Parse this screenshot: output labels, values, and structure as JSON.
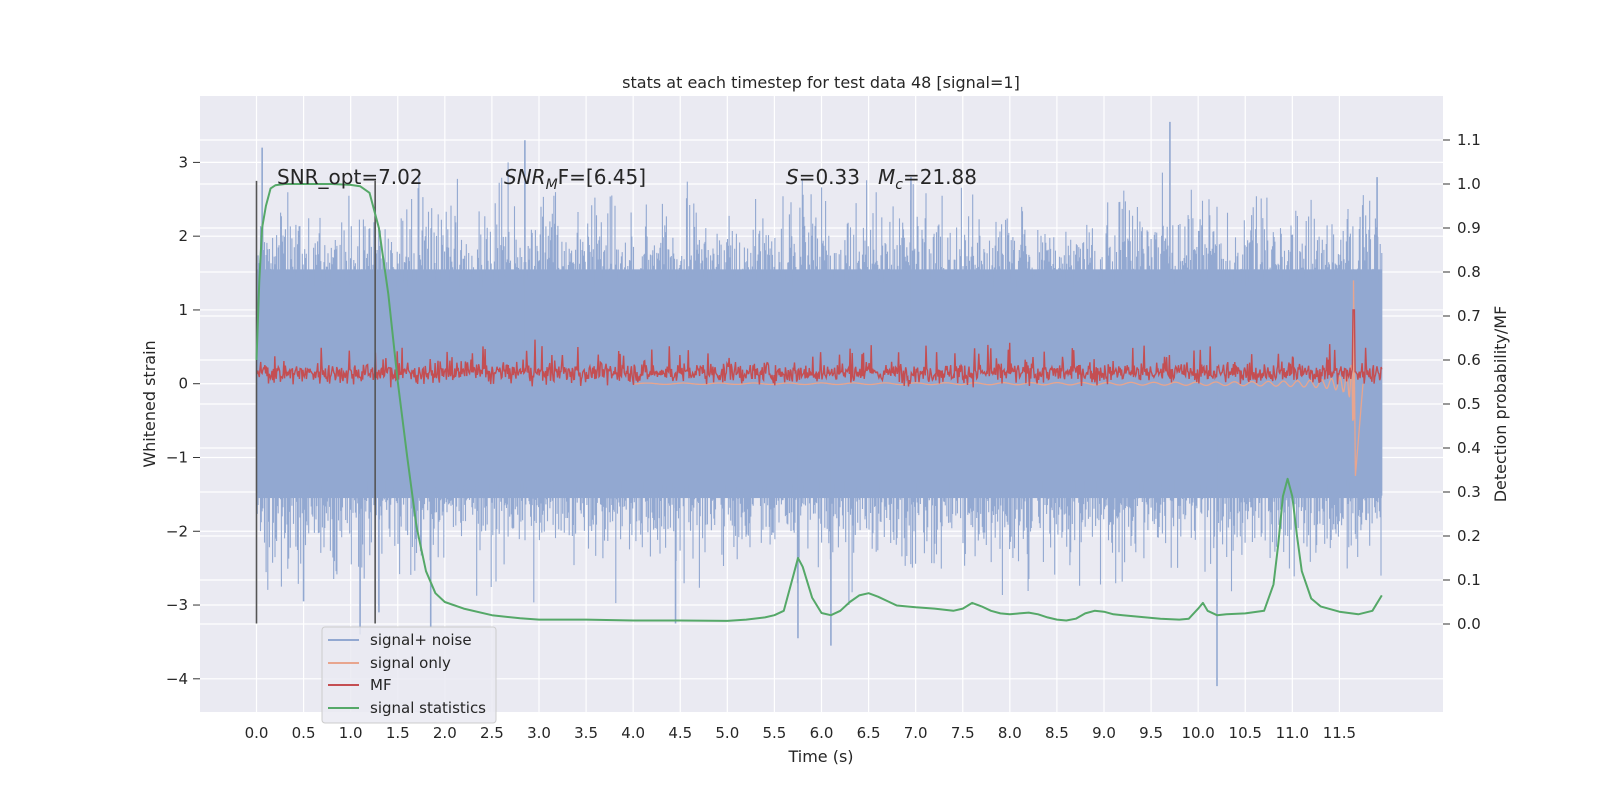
{
  "chart_data": {
    "type": "line",
    "title": "stats at each timestep for test data 48 [signal=1]",
    "xlabel": "Time (s)",
    "ylabel": "Whitened strain",
    "y2label": "Detection probability/MF",
    "xlim": [
      -0.6,
      12.6
    ],
    "ylim": [
      -4.45,
      3.9
    ],
    "y2lim": [
      -0.2,
      1.2
    ],
    "x_ticks": [
      0.0,
      0.5,
      1.0,
      1.5,
      2.0,
      2.5,
      3.0,
      3.5,
      4.0,
      4.5,
      5.0,
      5.5,
      6.0,
      6.5,
      7.0,
      7.5,
      8.0,
      8.5,
      9.0,
      9.5,
      10.0,
      10.5,
      11.0,
      11.5
    ],
    "x_tick_labels": [
      "0.0",
      "0.5",
      "1.0",
      "1.5",
      "2.0",
      "2.5",
      "3.0",
      "3.5",
      "4.0",
      "4.5",
      "5.0",
      "5.5",
      "6.0",
      "6.5",
      "7.0",
      "7.5",
      "8.0",
      "8.5",
      "9.0",
      "9.5",
      "10.0",
      "10.5",
      "11.0",
      "11.5"
    ],
    "y_ticks": [
      3,
      2,
      1,
      0,
      -1,
      -2,
      -3,
      -4
    ],
    "y_tick_labels": [
      "3",
      "2",
      "1",
      "0",
      "−1",
      "−2",
      "−3",
      "−4"
    ],
    "y2_ticks": [
      1.1,
      1.0,
      0.9,
      0.8,
      0.7,
      0.6,
      0.5,
      0.4,
      0.3,
      0.2,
      0.1,
      0.0
    ],
    "y2_tick_labels": [
      "1.1",
      "1.0",
      "0.9",
      "0.8",
      "0.7",
      "0.6",
      "0.5",
      "0.4",
      "0.3",
      "0.2",
      "0.1",
      "0.0"
    ],
    "grid": true,
    "legend_position": "lower-left",
    "annotations": [
      {
        "kind": "plain",
        "text": "SNR_opt=7.02"
      },
      {
        "kind": "mathsub",
        "main": "SNR",
        "sub": "M",
        "rest": "F=[6.45]"
      },
      {
        "kind": "mathpair",
        "a_main": "S",
        "a_rest": "=0.33",
        "b_main": "M",
        "b_sub": "c",
        "b_rest": "=21.88"
      }
    ],
    "vertical_markers": [
      {
        "x": 0.0,
        "y_range": [
          -3.25,
          2.75
        ],
        "color": "#555555"
      },
      {
        "x": 1.26,
        "y_range": [
          -3.25,
          2.75
        ],
        "color": "#555555"
      }
    ],
    "series": [
      {
        "name": "signal+ noise",
        "color": "#92a8d1",
        "axis": "left",
        "style": "dense-noise",
        "x_range": [
          0.0,
          11.95
        ],
        "core_band": [
          -1.55,
          1.55
        ],
        "extremes": [
          {
            "x": 0.06,
            "y": 3.2
          },
          {
            "x": 0.2,
            "y": -2.1
          },
          {
            "x": 0.5,
            "y": -2.95
          },
          {
            "x": 1.1,
            "y": -3.4
          },
          {
            "x": 1.3,
            "y": -3.1
          },
          {
            "x": 1.85,
            "y": -3.3
          },
          {
            "x": 2.85,
            "y": 3.3
          },
          {
            "x": 4.45,
            "y": -3.25
          },
          {
            "x": 5.75,
            "y": -3.45
          },
          {
            "x": 6.1,
            "y": -3.55
          },
          {
            "x": 6.95,
            "y": 2.8
          },
          {
            "x": 9.7,
            "y": 3.55
          },
          {
            "x": 10.2,
            "y": -4.1
          },
          {
            "x": 11.9,
            "y": 2.8
          }
        ]
      },
      {
        "name": "signal only",
        "color": "#e8a58e",
        "axis": "left",
        "style": "chirp",
        "x_range": [
          4.0,
          11.75
        ],
        "peak": {
          "x": 11.65,
          "y_max": 1.4,
          "y_min": -1.25
        }
      },
      {
        "name": "MF",
        "color": "#c44e52",
        "axis": "left",
        "style": "noisy-band",
        "x_range": [
          0.0,
          11.95
        ],
        "band": [
          0.0,
          0.3
        ],
        "spike": {
          "x": 11.65,
          "y": 1.0
        }
      },
      {
        "name": "signal statistics",
        "color": "#55a868",
        "axis": "right",
        "x": [
          0.0,
          0.03,
          0.06,
          0.1,
          0.15,
          0.2,
          0.3,
          0.5,
          0.8,
          1.0,
          1.1,
          1.2,
          1.3,
          1.4,
          1.5,
          1.6,
          1.7,
          1.8,
          1.9,
          2.0,
          2.2,
          2.5,
          2.8,
          3.0,
          3.5,
          4.0,
          4.5,
          5.0,
          5.2,
          5.4,
          5.5,
          5.6,
          5.7,
          5.75,
          5.8,
          5.9,
          6.0,
          6.1,
          6.2,
          6.3,
          6.4,
          6.5,
          6.6,
          6.8,
          7.0,
          7.2,
          7.4,
          7.5,
          7.6,
          7.7,
          7.8,
          7.9,
          8.0,
          8.1,
          8.2,
          8.3,
          8.4,
          8.5,
          8.6,
          8.7,
          8.8,
          8.9,
          9.0,
          9.1,
          9.2,
          9.4,
          9.6,
          9.8,
          9.9,
          10.0,
          10.05,
          10.1,
          10.2,
          10.3,
          10.5,
          10.7,
          10.8,
          10.85,
          10.9,
          10.95,
          11.0,
          11.05,
          11.1,
          11.2,
          11.3,
          11.5,
          11.7,
          11.85,
          11.95
        ],
        "values": [
          0.6,
          0.78,
          0.9,
          0.95,
          0.99,
          0.997,
          1.0,
          1.0,
          1.0,
          0.998,
          0.995,
          0.98,
          0.9,
          0.75,
          0.55,
          0.38,
          0.22,
          0.12,
          0.07,
          0.05,
          0.035,
          0.02,
          0.013,
          0.01,
          0.01,
          0.008,
          0.008,
          0.007,
          0.01,
          0.015,
          0.02,
          0.03,
          0.11,
          0.15,
          0.13,
          0.06,
          0.025,
          0.02,
          0.03,
          0.05,
          0.065,
          0.07,
          0.062,
          0.042,
          0.038,
          0.035,
          0.03,
          0.035,
          0.048,
          0.04,
          0.03,
          0.024,
          0.022,
          0.024,
          0.026,
          0.022,
          0.015,
          0.01,
          0.008,
          0.012,
          0.024,
          0.03,
          0.028,
          0.022,
          0.02,
          0.016,
          0.012,
          0.01,
          0.012,
          0.035,
          0.048,
          0.03,
          0.02,
          0.022,
          0.024,
          0.03,
          0.09,
          0.18,
          0.29,
          0.33,
          0.29,
          0.2,
          0.12,
          0.058,
          0.04,
          0.028,
          0.022,
          0.03,
          0.065
        ]
      }
    ]
  }
}
